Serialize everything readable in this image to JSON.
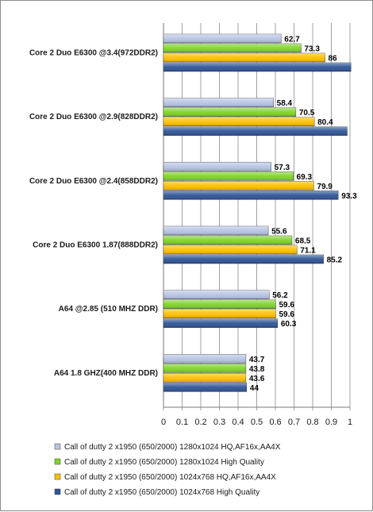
{
  "chart_data": {
    "type": "bar",
    "orientation": "horizontal",
    "categories": [
      "Core 2 Duo E6300 @3.4(972DDR2)",
      "Core 2 Duo E6300 @2.9(828DDR2)",
      "Core 2 Duo E6300 @2.4(858DDR2)",
      "Core 2 Duo E6300 1.87(888DDR2)",
      "A64 @2.85 (510 MHZ DDR)",
      "A64 1.8 GHZ(400 MHZ DDR)"
    ],
    "series": [
      {
        "name": "Call of dutty 2 x1950 (650/2000) 1280x1024 HQ,AF16x,AA4X",
        "color": "#b8c4e4",
        "values": [
          62.7,
          58.4,
          57.3,
          55.6,
          56.2,
          43.7
        ],
        "labels": [
          "62.7",
          "58.4",
          "57.3",
          "55.6",
          "56.2",
          "43.7"
        ]
      },
      {
        "name": "Call of dutty 2 x1950 (650/2000) 1280x1024 High Quality",
        "color": "#7fd42a",
        "values": [
          73.3,
          70.5,
          69.3,
          68.5,
          59.6,
          43.8
        ],
        "labels": [
          "73.3",
          "70.5",
          "69.3",
          "68.5",
          "59.6",
          "43.8"
        ]
      },
      {
        "name": "Call of dutty 2 x1950 (650/2000) 1024x768 HQ,AF16x,AA4X",
        "color": "#ffc000",
        "values": [
          86,
          80.4,
          79.9,
          71.1,
          59.6,
          43.6
        ],
        "labels": [
          "86",
          "80.4",
          "79.9",
          "71.1",
          "59.6",
          "43.6"
        ]
      },
      {
        "name": "Call of dutty 2 x1950 (650/2000) 1024x768 High Quality",
        "color": "#2e5597",
        "values": [
          100,
          98,
          93.3,
          85.2,
          60.3,
          44
        ],
        "labels": [
          "",
          "",
          "93.3",
          "85.2",
          "60.3",
          "44"
        ]
      }
    ],
    "bar_length_fraction_of_axis": [
      [
        0.631,
        0.59,
        0.577,
        0.562,
        0.567,
        0.442
      ],
      [
        0.738,
        0.71,
        0.696,
        0.689,
        0.602,
        0.442
      ],
      [
        0.866,
        0.809,
        0.806,
        0.716,
        0.602,
        0.442
      ],
      [
        1.005,
        0.985,
        0.937,
        0.858,
        0.612,
        0.446
      ]
    ],
    "xaxis": {
      "ticks": [
        "0",
        "0.1",
        "0.2",
        "0.3",
        "0.4",
        "0.5",
        "0.6",
        "0.7",
        "0.8",
        "0.9",
        "1"
      ],
      "range": [
        0,
        1
      ]
    },
    "grid": "vertical",
    "legend_position": "bottom",
    "title": "",
    "xlabel": "",
    "ylabel": ""
  }
}
